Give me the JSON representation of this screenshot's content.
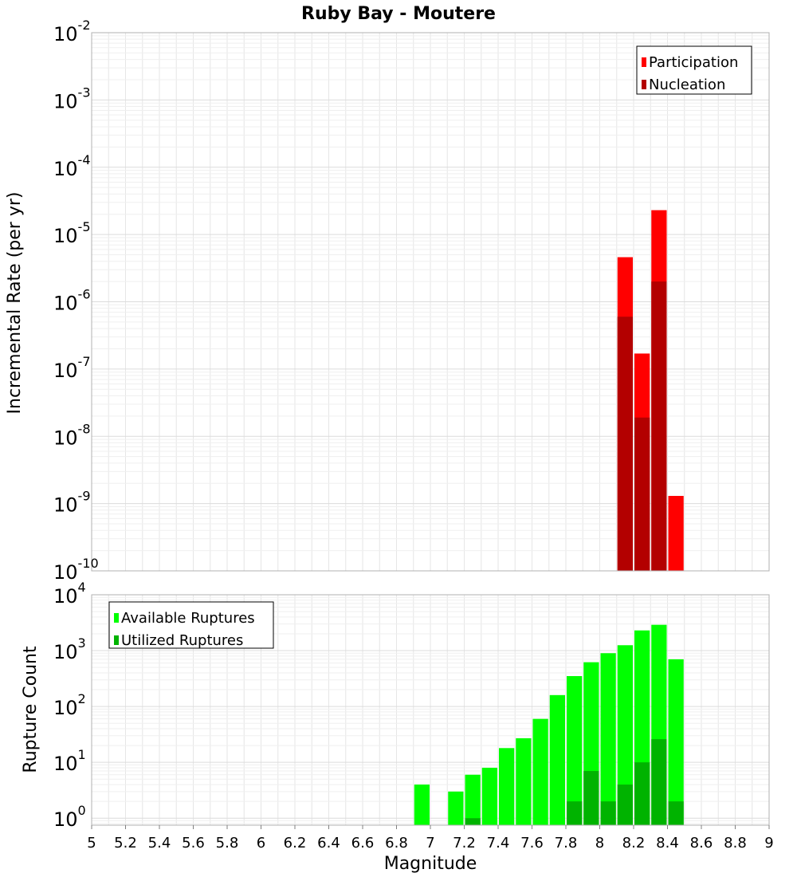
{
  "chart_data": [
    {
      "type": "bar",
      "title": "Ruby Bay - Moutere",
      "xlabel": "",
      "ylabel": "Incremental Rate (per yr)",
      "yscale": "log",
      "xlim": [
        5,
        9
      ],
      "ylim": [
        1e-10,
        0.01
      ],
      "grid": true,
      "legend_position": "top-right",
      "bar_width": 0.1,
      "y_ticks": [
        {
          "base": "10",
          "exp": "-10",
          "value": 1e-10
        },
        {
          "base": "10",
          "exp": "-9",
          "value": 1e-09
        },
        {
          "base": "10",
          "exp": "-8",
          "value": 1e-08
        },
        {
          "base": "10",
          "exp": "-7",
          "value": 1e-07
        },
        {
          "base": "10",
          "exp": "-6",
          "value": 1e-06
        },
        {
          "base": "10",
          "exp": "-5",
          "value": 1e-05
        },
        {
          "base": "10",
          "exp": "-4",
          "value": 0.0001
        },
        {
          "base": "10",
          "exp": "-3",
          "value": 0.001
        },
        {
          "base": "10",
          "exp": "-2",
          "value": 0.01
        }
      ],
      "series": [
        {
          "name": "Participation",
          "color": "#ff0000",
          "x": [
            8.15,
            8.25,
            8.35,
            8.45
          ],
          "values": [
            4.6e-06,
            1.7e-07,
            2.3e-05,
            1.3e-09
          ]
        },
        {
          "name": "Nucleation",
          "color": "#b30000",
          "x": [
            8.15,
            8.25,
            8.35
          ],
          "values": [
            6e-07,
            1.9e-08,
            2e-06
          ]
        }
      ]
    },
    {
      "type": "bar",
      "title": "",
      "xlabel": "Magnitude",
      "ylabel": "Rupture Count",
      "yscale": "log",
      "xlim": [
        5,
        9
      ],
      "ylim": [
        0.75,
        10000
      ],
      "grid": true,
      "legend_position": "top-left",
      "bar_width": 0.1,
      "x_ticks": [
        "5",
        "5.2",
        "5.4",
        "5.6",
        "5.8",
        "6",
        "6.2",
        "6.4",
        "6.6",
        "6.8",
        "7",
        "7.2",
        "7.4",
        "7.6",
        "7.8",
        "8",
        "8.2",
        "8.4",
        "8.6",
        "8.8",
        "9"
      ],
      "y_ticks": [
        {
          "base": "10",
          "exp": "0",
          "value": 1
        },
        {
          "base": "10",
          "exp": "1",
          "value": 10
        },
        {
          "base": "10",
          "exp": "2",
          "value": 100
        },
        {
          "base": "10",
          "exp": "3",
          "value": 1000
        },
        {
          "base": "10",
          "exp": "4",
          "value": 10000
        }
      ],
      "series": [
        {
          "name": "Available Ruptures",
          "color": "#00ff00",
          "x": [
            6.95,
            7.15,
            7.25,
            7.35,
            7.45,
            7.55,
            7.65,
            7.75,
            7.85,
            7.95,
            8.05,
            8.15,
            8.25,
            8.35,
            8.45
          ],
          "values": [
            4,
            3,
            6,
            8,
            18,
            27,
            60,
            160,
            350,
            620,
            900,
            1250,
            2300,
            2900,
            700
          ]
        },
        {
          "name": "Utilized Ruptures",
          "color": "#00b300",
          "x": [
            7.25,
            7.85,
            7.95,
            8.05,
            8.15,
            8.25,
            8.35,
            8.45
          ],
          "values": [
            1,
            2,
            7,
            2,
            4,
            10,
            26,
            2
          ]
        }
      ]
    }
  ]
}
